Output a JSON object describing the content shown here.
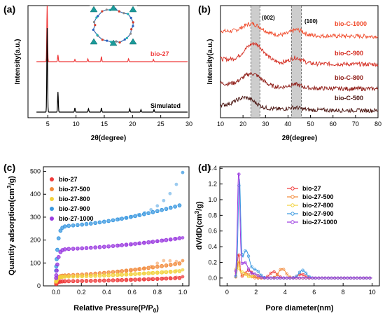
{
  "colors": {
    "bio27": "#ef3b3b",
    "bio27_500": "#f28a3a",
    "bio27_800": "#f2d23c",
    "bio27_900": "#3a98e0",
    "bio27_1000": "#9b3be0",
    "bioC1000": "#f04a2a",
    "bioC900": "#d42a1e",
    "bioC800": "#8e1a14",
    "bioC500": "#4a1410",
    "band": "#b8b8b8"
  },
  "panels": {
    "a": {
      "label": "(a)"
    },
    "b": {
      "label": "(b)"
    },
    "c": {
      "label": "(c)"
    },
    "d": {
      "label": "(d)"
    }
  },
  "chart_data": [
    {
      "id": "a",
      "type": "line",
      "xlabel": "2θ(degree)",
      "ylabel": "Intensity(a.u.)",
      "xlim": [
        1.5,
        30
      ],
      "xticks": [
        "5",
        "10",
        "15",
        "20",
        "25",
        "30"
      ],
      "series": [
        {
          "name": "bio-27",
          "peaks": [
            [
              4.9,
              1.0
            ],
            [
              6.8,
              0.12
            ],
            [
              9.8,
              0.04
            ],
            [
              12.1,
              0.05
            ],
            [
              14.5,
              0.09
            ],
            [
              19.3,
              0.05
            ],
            [
              23.7,
              0.04
            ]
          ]
        },
        {
          "name": "Simulated",
          "peaks": [
            [
              4.9,
              1.0
            ],
            [
              6.8,
              0.24
            ],
            [
              9.8,
              0.05
            ],
            [
              12.2,
              0.04
            ],
            [
              14.5,
              0.05
            ],
            [
              19.5,
              0.04
            ],
            [
              21.5,
              0.03
            ],
            [
              23.8,
              0.03
            ]
          ]
        }
      ]
    },
    {
      "id": "b",
      "type": "line",
      "xlabel": "2θ(degree)",
      "ylabel": "Intensity(a.u.)",
      "xlim": [
        10,
        80
      ],
      "xticks": [
        "10",
        "20",
        "30",
        "40",
        "50",
        "60",
        "70",
        "80"
      ],
      "bands": [
        {
          "range": [
            23.5,
            27.5
          ],
          "label": "(002)"
        },
        {
          "range": [
            41.5,
            46
          ],
          "label": "(100)"
        }
      ],
      "series": [
        {
          "name": "bio-C-1000"
        },
        {
          "name": "bio-C-900"
        },
        {
          "name": "bio-C-800"
        },
        {
          "name": "bio-C-500"
        }
      ]
    },
    {
      "id": "c",
      "type": "scatter",
      "xlabel": "Relative Pressure(P/P0)",
      "ylabel": "Quantity adsorption(cm³/g)",
      "xlim": [
        -0.1,
        1.05
      ],
      "ylim": [
        0,
        520
      ],
      "xticks": [
        "0.0",
        "0.2",
        "0.4",
        "0.6",
        "0.8",
        "1.0"
      ],
      "yticks": [
        "0",
        "100",
        "200",
        "300",
        "400",
        "500"
      ],
      "series": [
        {
          "name": "bio-27",
          "start": 8,
          "plateau": 20,
          "end": 35,
          "desorp_end": 40
        },
        {
          "name": "bio-27-500",
          "start": 15,
          "plateau": 45,
          "end": 100,
          "desorp_end": 110
        },
        {
          "name": "bio-27-800",
          "start": 20,
          "plateau": 40,
          "end": 65,
          "desorp_end": 70
        },
        {
          "name": "bio-27-900",
          "start": 60,
          "plateau": 260,
          "end": 355,
          "desorp_end": 495
        },
        {
          "name": "bio-27-1000",
          "start": 30,
          "plateau": 160,
          "end": 210,
          "desorp_end": 210
        }
      ]
    },
    {
      "id": "d",
      "type": "line",
      "xlabel": "Pore diameter(nm)",
      "ylabel": "dV/dD(cm³/g)",
      "xlim": [
        -0.5,
        10.5
      ],
      "ylim": [
        -0.1,
        1.42
      ],
      "xticks": [
        "0",
        "2",
        "4",
        "6",
        "8",
        "10"
      ],
      "yticks": [
        "0.0",
        "0.2",
        "0.4",
        "0.6",
        "0.8",
        "1.0",
        "1.2",
        "1.4"
      ],
      "series": [
        {
          "name": "bio-27",
          "peaks": [
            [
              0.8,
              0.3
            ],
            [
              1.5,
              0.1
            ],
            [
              3.2,
              0.08
            ],
            [
              5.1,
              0.05
            ]
          ]
        },
        {
          "name": "bio-27-500",
          "peaks": [
            [
              0.8,
              0.2
            ],
            [
              1.3,
              0.06
            ],
            [
              3.8,
              0.12
            ]
          ]
        },
        {
          "name": "bio-27-800",
          "peaks": [
            [
              0.7,
              0.18
            ],
            [
              1.0,
              0.08
            ],
            [
              2.0,
              0.04
            ]
          ]
        },
        {
          "name": "bio-27-900",
          "peaks": [
            [
              0.85,
              1.2
            ],
            [
              1.3,
              0.35
            ],
            [
              2.0,
              0.1
            ],
            [
              5.2,
              0.1
            ]
          ]
        },
        {
          "name": "bio-27-1000",
          "peaks": [
            [
              0.8,
              1.3
            ],
            [
              1.2,
              0.2
            ],
            [
              1.9,
              0.05
            ]
          ]
        }
      ]
    }
  ]
}
